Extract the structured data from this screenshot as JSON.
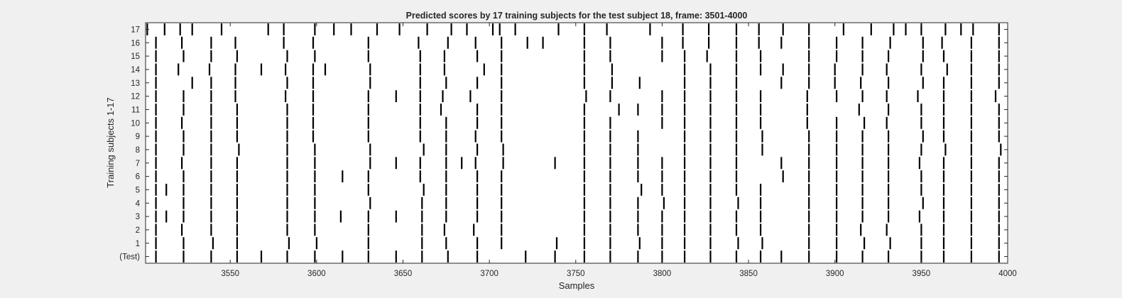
{
  "chart_data": {
    "type": "raster",
    "title": "Predicted scores by 17 training subjects for the test subject 18, frame: 3501-4000",
    "xlabel": "Samples",
    "ylabel": "Training subjects 1-17",
    "xlim": [
      3501,
      4000
    ],
    "xticks": [
      3550,
      3600,
      3650,
      3700,
      3750,
      3800,
      3850,
      3900,
      3950,
      4000
    ],
    "row_labels": [
      "17",
      "16",
      "15",
      "14",
      "13",
      "12",
      "11",
      "10",
      "9",
      "8",
      "7",
      "6",
      "5",
      "4",
      "3",
      "2",
      "1",
      "(Test)"
    ],
    "mark_color": "#000000",
    "rows": [
      {
        "label": "17",
        "events": [
          3502,
          3512,
          3521,
          3528,
          3545,
          3572,
          3581,
          3599,
          3610,
          3620,
          3635,
          3648,
          3664,
          3678,
          3687,
          3702,
          3706,
          3715,
          3740,
          3755,
          3768,
          3793,
          3812,
          3827,
          3843,
          3856,
          3870,
          3885,
          3905,
          3921,
          3934,
          3941,
          3950,
          3964,
          3973,
          3980,
          3995
        ]
      },
      {
        "label": "16",
        "events": [
          3507,
          3522,
          3539,
          3553,
          3581,
          3598,
          3630,
          3659,
          3676,
          3692,
          3707,
          3722,
          3731,
          3755,
          3770,
          3800,
          3812,
          3827,
          3843,
          3856,
          3869,
          3885,
          3901,
          3916,
          3932,
          3951,
          3962,
          3979,
          3995
        ]
      },
      {
        "label": "15",
        "events": [
          3507,
          3523,
          3539,
          3554,
          3583,
          3599,
          3630,
          3660,
          3674,
          3693,
          3707,
          3755,
          3770,
          3800,
          3813,
          3826,
          3843,
          3857,
          3885,
          3901,
          3916,
          3931,
          3951,
          3963,
          3979,
          3995
        ]
      },
      {
        "label": "14",
        "events": [
          3507,
          3520,
          3538,
          3553,
          3568,
          3582,
          3598,
          3605,
          3631,
          3660,
          3674,
          3697,
          3707,
          3755,
          3771,
          3813,
          3828,
          3843,
          3857,
          3870,
          3885,
          3900,
          3916,
          3930,
          3950,
          3965,
          3979,
          3995
        ]
      },
      {
        "label": "13",
        "events": [
          3507,
          3528,
          3539,
          3553,
          3583,
          3598,
          3631,
          3660,
          3675,
          3693,
          3707,
          3755,
          3771,
          3787,
          3813,
          3828,
          3843,
          3869,
          3885,
          3900,
          3915,
          3931,
          3951,
          3963,
          3979,
          3995
        ]
      },
      {
        "label": "12",
        "events": [
          3507,
          3523,
          3539,
          3553,
          3582,
          3598,
          3630,
          3646,
          3660,
          3673,
          3689,
          3707,
          3756,
          3770,
          3800,
          3813,
          3828,
          3843,
          3857,
          3884,
          3901,
          3916,
          3930,
          3948,
          3963,
          3979,
          3993
        ]
      },
      {
        "label": "11",
        "events": [
          3507,
          3523,
          3539,
          3554,
          3583,
          3598,
          3630,
          3660,
          3672,
          3693,
          3707,
          3755,
          3775,
          3786,
          3800,
          3813,
          3828,
          3843,
          3857,
          3884,
          3914,
          3931,
          3950,
          3963,
          3979,
          3995
        ]
      },
      {
        "label": "10",
        "events": [
          3507,
          3522,
          3539,
          3554,
          3583,
          3598,
          3630,
          3660,
          3675,
          3693,
          3707,
          3755,
          3770,
          3800,
          3813,
          3828,
          3843,
          3857,
          3884,
          3901,
          3917,
          3930,
          3950,
          3963,
          3979,
          3995
        ]
      },
      {
        "label": "9",
        "events": [
          3507,
          3523,
          3539,
          3554,
          3583,
          3598,
          3630,
          3660,
          3675,
          3692,
          3707,
          3755,
          3770,
          3786,
          3813,
          3828,
          3843,
          3858,
          3885,
          3901,
          3916,
          3931,
          3951,
          3963,
          3979,
          3995
        ]
      },
      {
        "label": "8",
        "events": [
          3507,
          3523,
          3539,
          3555,
          3583,
          3599,
          3631,
          3662,
          3675,
          3693,
          3708,
          3755,
          3770,
          3786,
          3813,
          3828,
          3843,
          3858,
          3885,
          3901,
          3916,
          3931,
          3950,
          3964,
          3979,
          3996
        ]
      },
      {
        "label": "7",
        "events": [
          3507,
          3522,
          3539,
          3554,
          3583,
          3599,
          3631,
          3646,
          3660,
          3675,
          3684,
          3692,
          3708,
          3738,
          3755,
          3770,
          3786,
          3800,
          3813,
          3828,
          3843,
          3869,
          3885,
          3901,
          3916,
          3931,
          3949,
          3963,
          3979,
          3995
        ]
      },
      {
        "label": "6",
        "events": [
          3507,
          3523,
          3539,
          3554,
          3583,
          3599,
          3615,
          3630,
          3660,
          3675,
          3693,
          3707,
          3755,
          3770,
          3786,
          3800,
          3813,
          3828,
          3843,
          3870,
          3885,
          3901,
          3916,
          3931,
          3950,
          3963,
          3979,
          3995
        ]
      },
      {
        "label": "5",
        "events": [
          3507,
          3513,
          3523,
          3539,
          3554,
          3583,
          3599,
          3630,
          3662,
          3675,
          3693,
          3707,
          3755,
          3770,
          3788,
          3800,
          3813,
          3828,
          3843,
          3857,
          3885,
          3901,
          3916,
          3931,
          3950,
          3963,
          3979,
          3995
        ]
      },
      {
        "label": "4",
        "events": [
          3507,
          3523,
          3539,
          3554,
          3583,
          3599,
          3631,
          3661,
          3675,
          3693,
          3707,
          3755,
          3770,
          3786,
          3801,
          3813,
          3828,
          3844,
          3857,
          3885,
          3901,
          3916,
          3931,
          3951,
          3963,
          3979,
          3995
        ]
      },
      {
        "label": "3",
        "events": [
          3507,
          3513,
          3523,
          3539,
          3554,
          3583,
          3599,
          3614,
          3630,
          3646,
          3661,
          3675,
          3693,
          3707,
          3755,
          3770,
          3786,
          3800,
          3813,
          3828,
          3843,
          3857,
          3885,
          3901,
          3916,
          3931,
          3949,
          3963,
          3979,
          3995
        ]
      },
      {
        "label": "2",
        "events": [
          3507,
          3522,
          3539,
          3554,
          3583,
          3599,
          3630,
          3661,
          3674,
          3691,
          3707,
          3755,
          3770,
          3786,
          3800,
          3813,
          3828,
          3843,
          3857,
          3885,
          3901,
          3915,
          3930,
          3950,
          3963,
          3979,
          3995
        ]
      },
      {
        "label": "1",
        "events": [
          3507,
          3523,
          3540,
          3554,
          3584,
          3600,
          3630,
          3661,
          3675,
          3693,
          3707,
          3739,
          3755,
          3770,
          3787,
          3800,
          3813,
          3828,
          3844,
          3858,
          3885,
          3901,
          3917,
          3932,
          3950,
          3963,
          3979,
          3995
        ]
      },
      {
        "label": "(Test)",
        "events": [
          3507,
          3523,
          3539,
          3554,
          3568,
          3583,
          3599,
          3615,
          3630,
          3646,
          3661,
          3676,
          3693,
          3721,
          3738,
          3755,
          3770,
          3786,
          3800,
          3813,
          3828,
          3843,
          3857,
          3869,
          3885,
          3901,
          3916,
          3931,
          3950,
          3963,
          3979,
          3995
        ]
      }
    ]
  }
}
